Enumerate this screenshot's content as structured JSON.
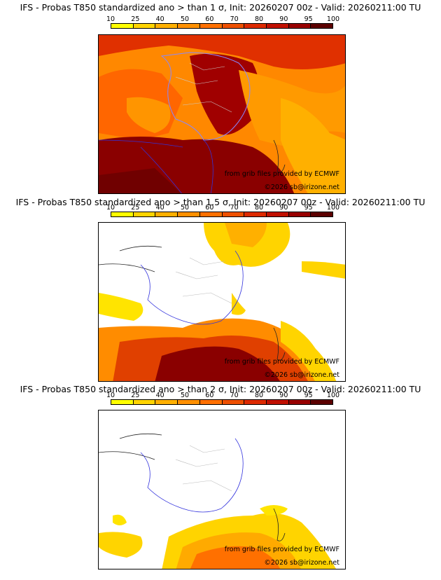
{
  "colorbar": {
    "ticks": [
      "10",
      "25",
      "40",
      "50",
      "60",
      "70",
      "80",
      "90",
      "95",
      "100"
    ],
    "colors": [
      "#ffff00",
      "#ffd400",
      "#ffb000",
      "#ff9000",
      "#ff7000",
      "#ee5000",
      "#dd2a00",
      "#c01000",
      "#980000",
      "#5c0000"
    ]
  },
  "panels": [
    {
      "title": "IFS - Probas T850  standardized ano > than 1 σ, Init: 20260207 00z - Valid: 20260211:00 TU",
      "credit_line1": "from grib files provided by ECMWF",
      "credit_line2": "©2026 sb@irizone.net"
    },
    {
      "title": "IFS - Probas T850  standardized ano > than 1.5 σ, Init: 20260207 00z - Valid: 20260211:00 TU",
      "credit_line1": "from grib files provided by ECMWF",
      "credit_line2": "©2026 sb@irizone.net"
    },
    {
      "title": "IFS - Probas T850  standardized ano > than 2 σ, Init: 20260207 00z - Valid: 20260211:00 TU",
      "credit_line1": "from grib files provided by ECMWF",
      "credit_line2": "©2026 sb@irizone.net"
    }
  ]
}
